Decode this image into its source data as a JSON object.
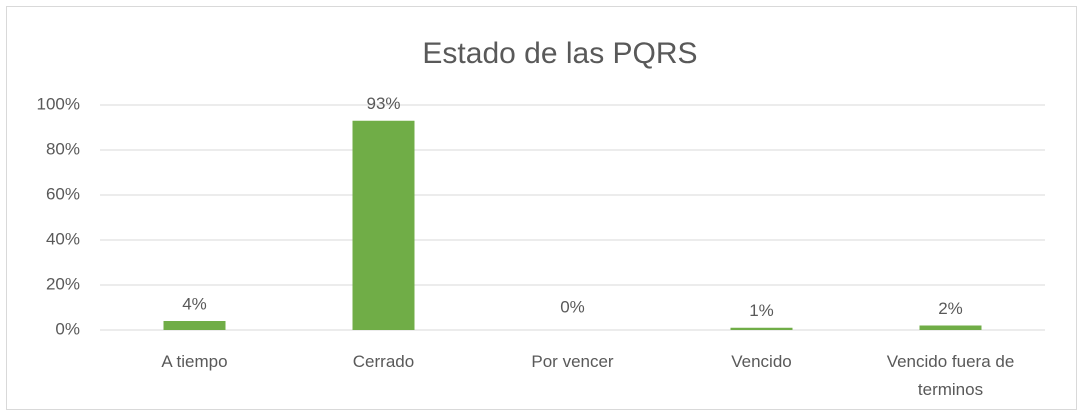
{
  "chart_data": {
    "type": "bar",
    "title": "Estado de las PQRS",
    "categories": [
      "A tiempo",
      "Cerrado",
      "Por vencer",
      "Vencido",
      "Vencido fuera de terminos"
    ],
    "values": [
      4,
      93,
      0,
      1,
      2
    ],
    "value_labels": [
      "4%",
      "93%",
      "0%",
      "1%",
      "2%"
    ],
    "color": "#70ad47",
    "ylim": [
      0,
      100
    ],
    "yticks": [
      {
        "value": 0,
        "label": "0%"
      },
      {
        "value": 20,
        "label": "20%"
      },
      {
        "value": 40,
        "label": "40%"
      },
      {
        "value": 60,
        "label": "60%"
      },
      {
        "value": 80,
        "label": "80%"
      },
      {
        "value": 100,
        "label": "100%"
      }
    ],
    "grid": true
  }
}
